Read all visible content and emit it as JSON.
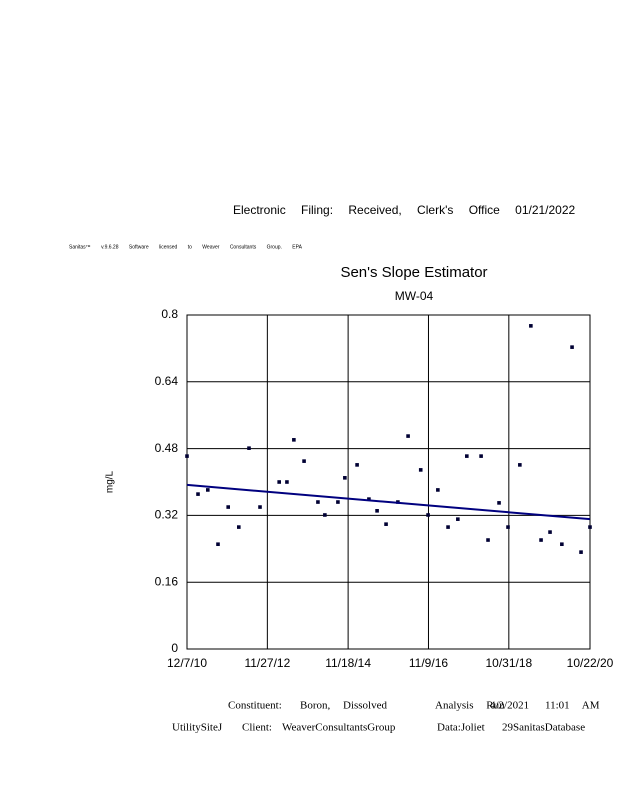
{
  "header": {
    "filing": "Electronic Filing: Received, Clerk's Office 01/21/2022",
    "license": "Sanitas™ v.9.6.28 Software licensed to Weaver Consultants Group. EPA"
  },
  "chart_data": {
    "type": "scatter",
    "title": "Sen's Slope Estimator",
    "subtitle": "MW-04",
    "y_label": "mg/L",
    "xlim": [
      2010.93,
      2020.81
    ],
    "xticks": [
      {
        "value": 2010.93,
        "label": "12/7/10"
      },
      {
        "value": 2012.9,
        "label": "11/27/12"
      },
      {
        "value": 2014.88,
        "label": "11/18/14"
      },
      {
        "value": 2016.85,
        "label": "11/9/16"
      },
      {
        "value": 2018.82,
        "label": "10/31/18"
      },
      {
        "value": 2020.81,
        "label": "10/22/20"
      }
    ],
    "ylim": [
      0,
      0.8
    ],
    "yticks": [
      0,
      0.16,
      0.32,
      0.48,
      0.64,
      0.8
    ],
    "grid": true,
    "x": [
      2010.93,
      2011.2,
      2011.44,
      2011.69,
      2011.94,
      2012.2,
      2012.45,
      2012.72,
      2013.19,
      2013.38,
      2013.55,
      2013.8,
      2014.14,
      2014.31,
      2014.63,
      2014.8,
      2015.1,
      2015.39,
      2015.59,
      2015.81,
      2016.1,
      2016.35,
      2016.66,
      2016.84,
      2017.08,
      2017.33,
      2017.57,
      2017.79,
      2018.14,
      2018.31,
      2018.58,
      2018.8,
      2019.09,
      2019.36,
      2019.61,
      2019.83,
      2020.12,
      2020.37,
      2020.59,
      2020.81
    ],
    "values": [
      0.462,
      0.371,
      0.381,
      0.251,
      0.34,
      0.292,
      0.481,
      0.34,
      0.4,
      0.4,
      0.501,
      0.45,
      0.352,
      0.321,
      0.352,
      0.41,
      0.441,
      0.359,
      0.331,
      0.299,
      0.352,
      0.51,
      0.429,
      0.321,
      0.381,
      0.292,
      0.311,
      0.462,
      0.462,
      0.261,
      0.35,
      0.292,
      0.441,
      0.774,
      0.261,
      0.28,
      0.251,
      0.723,
      0.232,
      0.292
    ],
    "color": "#000033",
    "trend_line": {
      "x": [
        2010.93,
        2020.81
      ],
      "values": [
        0.393,
        0.311
      ],
      "color": "#00007f"
    }
  },
  "footer": {
    "line1": [
      "Constituent:",
      "Boron, Dissolved",
      "Analysis Run",
      "4/2/2021",
      "11:01 AM"
    ],
    "line2": [
      "UtilitySiteJ",
      "Client:",
      "WeaverConsultantsGroup",
      "Data:Joliet",
      "29SanitasDatabase"
    ]
  }
}
